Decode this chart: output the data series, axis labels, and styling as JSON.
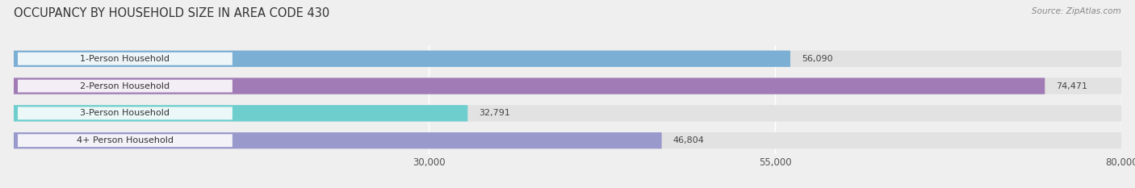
{
  "title": "OCCUPANCY BY HOUSEHOLD SIZE IN AREA CODE 430",
  "source": "Source: ZipAtlas.com",
  "categories": [
    "1-Person Household",
    "2-Person Household",
    "3-Person Household",
    "4+ Person Household"
  ],
  "values": [
    56090,
    74471,
    32791,
    46804
  ],
  "bar_colors": [
    "#7bafd4",
    "#a07bb5",
    "#6ecece",
    "#9999cc"
  ],
  "bar_labels": [
    "56,090",
    "74,471",
    "32,791",
    "46,804"
  ],
  "xlim": [
    0,
    80000
  ],
  "xticks": [
    30000,
    55000,
    80000
  ],
  "xtick_labels": [
    "30,000",
    "55,000",
    "80,000"
  ],
  "background_color": "#efefef",
  "bar_bg_color": "#e2e2e2",
  "title_fontsize": 10.5,
  "label_fontsize": 8.0,
  "tick_fontsize": 8.5,
  "source_fontsize": 7.5
}
